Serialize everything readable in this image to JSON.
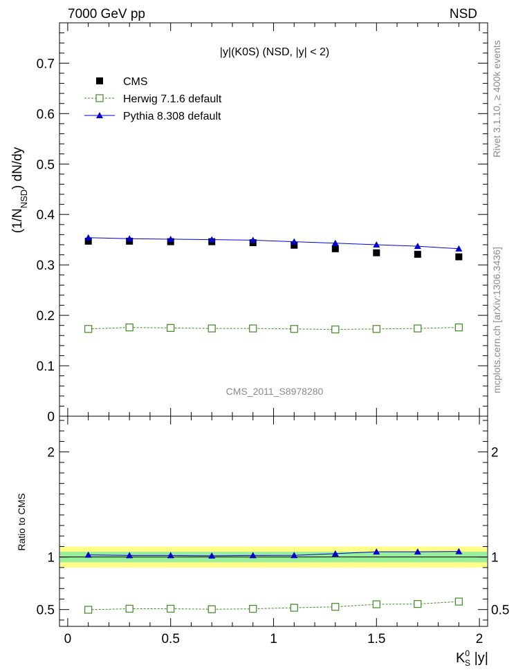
{
  "header": {
    "left": "7000 GeV pp",
    "right": "NSD"
  },
  "side_text": {
    "top": "Rivet 3.1.10, ≥ 400k events",
    "bottom": "mcplots.cern.ch [arXiv:1306.3436]"
  },
  "chart_data": {
    "type": "scatter",
    "title": "|y|(K0S) (NSD, |y| < 2)",
    "watermark": "CMS_2011_S8978280",
    "ylabel_main": {
      "prefix": "(1/N",
      "sub": "NSD",
      "suffix": ") dN/dy"
    },
    "ylabel_ratio": "Ratio to CMS",
    "xlabel": {
      "base": "K",
      "sup": "0",
      "sub": "S",
      "suffix": " |y|"
    },
    "xlim": [
      -0.04,
      2.04
    ],
    "ylim_main": [
      0,
      0.78
    ],
    "ylim_ratio": [
      0.34,
      2.34
    ],
    "x_ticks": [
      {
        "v": 0,
        "label": "0"
      },
      {
        "v": 0.5,
        "label": "0.5"
      },
      {
        "v": 1,
        "label": "1"
      },
      {
        "v": 1.5,
        "label": "1.5"
      },
      {
        "v": 2,
        "label": "2"
      }
    ],
    "y_ticks_main": [
      {
        "v": 0,
        "label": "0"
      },
      {
        "v": 0.1,
        "label": "0.1"
      },
      {
        "v": 0.2,
        "label": "0.2"
      },
      {
        "v": 0.3,
        "label": "0.3"
      },
      {
        "v": 0.4,
        "label": "0.4"
      },
      {
        "v": 0.5,
        "label": "0.5"
      },
      {
        "v": 0.6,
        "label": "0.6"
      },
      {
        "v": 0.7,
        "label": "0.7"
      }
    ],
    "y_ticks_ratio": [
      {
        "v": 0.5,
        "label": "0.5"
      },
      {
        "v": 1,
        "label": "1"
      },
      {
        "v": 2,
        "label": "2"
      }
    ],
    "x": [
      0.1,
      0.3,
      0.5,
      0.7,
      0.9,
      1.1,
      1.3,
      1.5,
      1.7,
      1.9
    ],
    "series": [
      {
        "name": "CMS",
        "marker": "square-filled",
        "color": "#000000",
        "values": [
          0.347,
          0.347,
          0.346,
          0.346,
          0.344,
          0.339,
          0.332,
          0.324,
          0.321,
          0.316
        ],
        "ratio": [
          1,
          1,
          1,
          1,
          1,
          1,
          1,
          1,
          1,
          1
        ]
      },
      {
        "name": "Herwig 7.1.6 default",
        "marker": "square-open",
        "line": "dashed",
        "color": "#3a8a1e",
        "values": [
          0.173,
          0.176,
          0.175,
          0.174,
          0.174,
          0.173,
          0.172,
          0.173,
          0.174,
          0.176
        ],
        "ratio": [
          0.498,
          0.508,
          0.508,
          0.503,
          0.507,
          0.517,
          0.526,
          0.55,
          0.553,
          0.576
        ]
      },
      {
        "name": "Pythia 8.308 default",
        "marker": "triangle-filled",
        "line": "solid",
        "color": "#0000cc",
        "values": [
          0.354,
          0.352,
          0.351,
          0.35,
          0.349,
          0.346,
          0.343,
          0.34,
          0.337,
          0.332
        ],
        "ratio": [
          1.02,
          1.015,
          1.015,
          1.012,
          1.015,
          1.016,
          1.032,
          1.05,
          1.05,
          1.053
        ]
      }
    ],
    "ratio_bands": {
      "inner": [
        0.95,
        1.05
      ],
      "outer": [
        0.9,
        1.1
      ],
      "inner_color": "#99ee99",
      "outer_color": "#ffff88"
    }
  }
}
